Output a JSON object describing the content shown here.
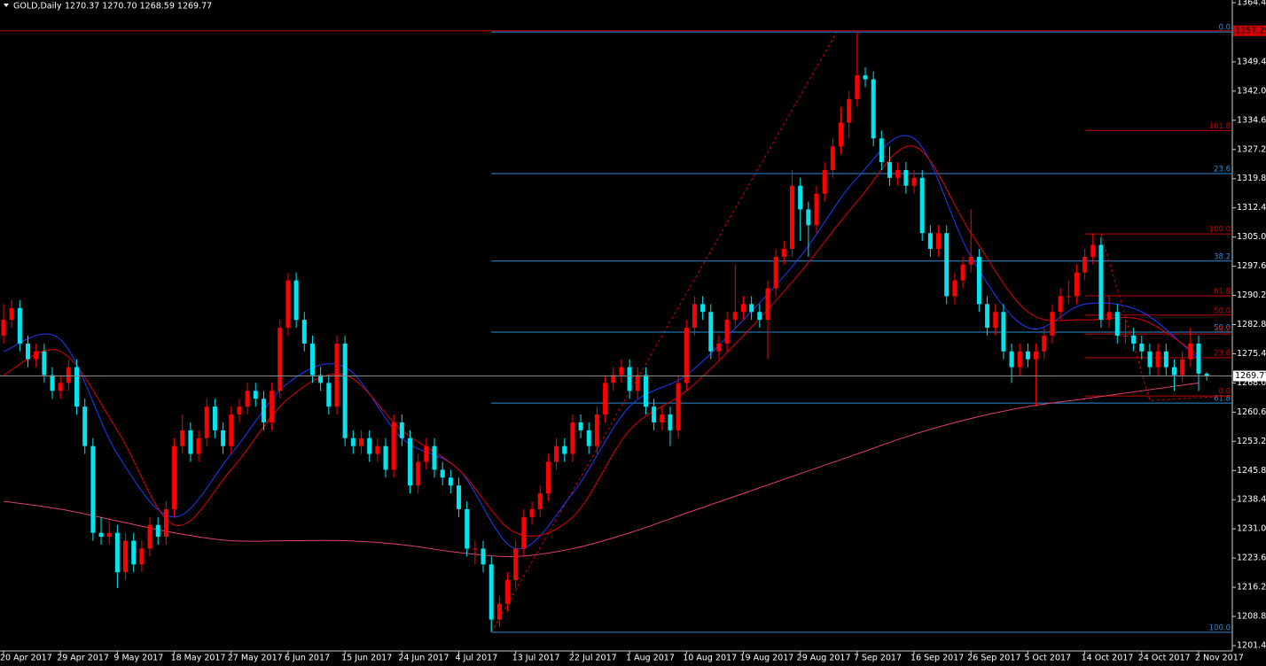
{
  "header": {
    "symbol": "GOLD,Daily",
    "quote": "1270.37 1270.70 1268.59 1269.77"
  },
  "chart_data": {
    "type": "candlestick",
    "up_color": "#ff0000",
    "down_color": "#00e5ee",
    "ylim": [
      1200.05,
      1365.1
    ],
    "yticks": [
      {
        "value": 1364.4,
        "label": "1364.40"
      },
      {
        "value": 1349.4,
        "label": "1349.40"
      },
      {
        "value": 1342,
        "label": "1342.00"
      },
      {
        "value": 1334.6,
        "label": "1334.60"
      },
      {
        "value": 1327.2,
        "label": "1327.20"
      },
      {
        "value": 1319.8,
        "label": "1319.80"
      },
      {
        "value": 1312.4,
        "label": "1312.40"
      },
      {
        "value": 1305,
        "label": "1305.00"
      },
      {
        "value": 1297.6,
        "label": "1297.60"
      },
      {
        "value": 1290.2,
        "label": "1290.20"
      },
      {
        "value": 1282.8,
        "label": "1282.80"
      },
      {
        "value": 1275.4,
        "label": "1275.40"
      },
      {
        "value": 1268,
        "label": "1268.00"
      },
      {
        "value": 1260.6,
        "label": "1260.60"
      },
      {
        "value": 1253.2,
        "label": "1253.20"
      },
      {
        "value": 1245.8,
        "label": "1245.80"
      },
      {
        "value": 1238.4,
        "label": "1238.40"
      },
      {
        "value": 1231,
        "label": "1231.00"
      },
      {
        "value": 1223.6,
        "label": "1223.60"
      },
      {
        "value": 1216.2,
        "label": "1216.20"
      },
      {
        "value": 1208.8,
        "label": "1208.80"
      },
      {
        "value": 1201.4,
        "label": "1201.40"
      }
    ],
    "x_labels": [
      "20 Apr 2017",
      "29 Apr 2017",
      "9 May 2017",
      "18 May 2017",
      "27 May 2017",
      "6 Jun 2017",
      "15 Jun 2017",
      "24 Jun 2017",
      "4 Jul 2017",
      "13 Jul 2017",
      "22 Jul 2017",
      "1 Aug 2017",
      "10 Aug 2017",
      "19 Aug 2017",
      "29 Aug 2017",
      "7 Sep 2017",
      "16 Sep 2017",
      "26 Sep 2017",
      "5 Oct 2017",
      "14 Oct 2017",
      "24 Oct 2017",
      "2 Nov 2017"
    ],
    "candles": [
      [
        1280,
        1288,
        1278,
        1284
      ],
      [
        1284,
        1289,
        1282,
        1287
      ],
      [
        1287,
        1289,
        1276,
        1278
      ],
      [
        1278,
        1280,
        1272,
        1274
      ],
      [
        1274,
        1278,
        1272,
        1276
      ],
      [
        1276,
        1278,
        1268,
        1270
      ],
      [
        1270,
        1272,
        1264,
        1266
      ],
      [
        1266,
        1270,
        1264,
        1268
      ],
      [
        1268,
        1274,
        1266,
        1272
      ],
      [
        1272,
        1274,
        1260,
        1262
      ],
      [
        1262,
        1264,
        1250,
        1252
      ],
      [
        1252,
        1254,
        1228,
        1230
      ],
      [
        1230,
        1234,
        1227,
        1229
      ],
      [
        1229,
        1233,
        1227,
        1230
      ],
      [
        1230,
        1232,
        1216,
        1220
      ],
      [
        1220,
        1230,
        1218,
        1228
      ],
      [
        1228,
        1230,
        1220,
        1222
      ],
      [
        1222,
        1228,
        1220,
        1226
      ],
      [
        1226,
        1234,
        1224,
        1232
      ],
      [
        1232,
        1234,
        1227,
        1229
      ],
      [
        1229,
        1238,
        1227,
        1236
      ],
      [
        1236,
        1254,
        1234,
        1252
      ],
      [
        1252,
        1260,
        1250,
        1256
      ],
      [
        1256,
        1258,
        1248,
        1250
      ],
      [
        1250,
        1256,
        1248,
        1254
      ],
      [
        1254,
        1264,
        1252,
        1262
      ],
      [
        1262,
        1264,
        1254,
        1256
      ],
      [
        1256,
        1258,
        1250,
        1252
      ],
      [
        1252,
        1262,
        1250,
        1260
      ],
      [
        1260,
        1264,
        1258,
        1262
      ],
      [
        1262,
        1268,
        1260,
        1266
      ],
      [
        1266,
        1268,
        1262,
        1264
      ],
      [
        1264,
        1266,
        1256,
        1258
      ],
      [
        1258,
        1268,
        1256,
        1266
      ],
      [
        1266,
        1284,
        1264,
        1282
      ],
      [
        1282,
        1296,
        1280,
        1294
      ],
      [
        1294,
        1296,
        1282,
        1284
      ],
      [
        1284,
        1286,
        1276,
        1278
      ],
      [
        1278,
        1280,
        1268,
        1270
      ],
      [
        1270,
        1272,
        1266,
        1268
      ],
      [
        1268,
        1270,
        1260,
        1262
      ],
      [
        1262,
        1280,
        1260,
        1278
      ],
      [
        1278,
        1280,
        1252,
        1254
      ],
      [
        1254,
        1256,
        1250,
        1252
      ],
      [
        1252,
        1256,
        1250,
        1254
      ],
      [
        1254,
        1256,
        1248,
        1250
      ],
      [
        1250,
        1254,
        1248,
        1252
      ],
      [
        1252,
        1254,
        1244,
        1246
      ],
      [
        1246,
        1260,
        1244,
        1258
      ],
      [
        1258,
        1260,
        1252,
        1254
      ],
      [
        1254,
        1256,
        1240,
        1242
      ],
      [
        1242,
        1250,
        1240,
        1248
      ],
      [
        1248,
        1254,
        1246,
        1252
      ],
      [
        1252,
        1254,
        1244,
        1246
      ],
      [
        1246,
        1248,
        1242,
        1244
      ],
      [
        1244,
        1246,
        1240,
        1242
      ],
      [
        1242,
        1244,
        1234,
        1236
      ],
      [
        1236,
        1238,
        1224,
        1226
      ],
      [
        1226,
        1228,
        1222,
        1226
      ],
      [
        1226,
        1228,
        1220,
        1222
      ],
      [
        1222,
        1224,
        1205,
        1208
      ],
      [
        1208,
        1214,
        1206,
        1212
      ],
      [
        1212,
        1220,
        1210,
        1218
      ],
      [
        1218,
        1228,
        1216,
        1226
      ],
      [
        1226,
        1236,
        1224,
        1234
      ],
      [
        1234,
        1238,
        1232,
        1236
      ],
      [
        1236,
        1242,
        1234,
        1240
      ],
      [
        1240,
        1250,
        1238,
        1248
      ],
      [
        1248,
        1254,
        1246,
        1252
      ],
      [
        1252,
        1254,
        1248,
        1250
      ],
      [
        1250,
        1260,
        1248,
        1258
      ],
      [
        1258,
        1260,
        1254,
        1256
      ],
      [
        1256,
        1258,
        1250,
        1252
      ],
      [
        1252,
        1262,
        1250,
        1260
      ],
      [
        1260,
        1270,
        1258,
        1268
      ],
      [
        1268,
        1272,
        1266,
        1270
      ],
      [
        1270,
        1274,
        1268,
        1272
      ],
      [
        1272,
        1274,
        1264,
        1266
      ],
      [
        1266,
        1272,
        1264,
        1270
      ],
      [
        1270,
        1272,
        1260,
        1262
      ],
      [
        1262,
        1264,
        1256,
        1258
      ],
      [
        1258,
        1262,
        1256,
        1260
      ],
      [
        1260,
        1262,
        1252,
        1256
      ],
      [
        1256,
        1270,
        1254,
        1268
      ],
      [
        1268,
        1284,
        1266,
        1282
      ],
      [
        1282,
        1290,
        1280,
        1288
      ],
      [
        1288,
        1290,
        1284,
        1286
      ],
      [
        1286,
        1288,
        1274,
        1276
      ],
      [
        1276,
        1280,
        1274,
        1278
      ],
      [
        1278,
        1286,
        1276,
        1284
      ],
      [
        1284,
        1298,
        1282,
        1286
      ],
      [
        1286,
        1290,
        1284,
        1288
      ],
      [
        1288,
        1290,
        1284,
        1286
      ],
      [
        1286,
        1288,
        1282,
        1284
      ],
      [
        1284,
        1294,
        1274,
        1292
      ],
      [
        1292,
        1302,
        1290,
        1300
      ],
      [
        1300,
        1304,
        1298,
        1302
      ],
      [
        1302,
        1322,
        1300,
        1318
      ],
      [
        1318,
        1320,
        1304,
        1312
      ],
      [
        1312,
        1314,
        1300,
        1308
      ],
      [
        1308,
        1318,
        1306,
        1316
      ],
      [
        1316,
        1324,
        1314,
        1322
      ],
      [
        1322,
        1330,
        1320,
        1328
      ],
      [
        1328,
        1338,
        1326,
        1334
      ],
      [
        1334,
        1342,
        1330,
        1340
      ],
      [
        1340,
        1357,
        1338,
        1346
      ],
      [
        1346,
        1348,
        1343,
        1345
      ],
      [
        1345,
        1347,
        1328,
        1330
      ],
      [
        1330,
        1332,
        1322,
        1324
      ],
      [
        1324,
        1328,
        1318,
        1320
      ],
      [
        1320,
        1324,
        1318,
        1322
      ],
      [
        1322,
        1324,
        1316,
        1318
      ],
      [
        1318,
        1322,
        1316,
        1320
      ],
      [
        1320,
        1322,
        1304,
        1306
      ],
      [
        1306,
        1308,
        1300,
        1302
      ],
      [
        1302,
        1308,
        1300,
        1306
      ],
      [
        1306,
        1308,
        1288,
        1290
      ],
      [
        1290,
        1296,
        1288,
        1294
      ],
      [
        1294,
        1300,
        1292,
        1298
      ],
      [
        1298,
        1312,
        1296,
        1300
      ],
      [
        1300,
        1302,
        1286,
        1288
      ],
      [
        1288,
        1290,
        1280,
        1282
      ],
      [
        1282,
        1288,
        1280,
        1286
      ],
      [
        1286,
        1288,
        1274,
        1276
      ],
      [
        1276,
        1278,
        1268,
        1272
      ],
      [
        1272,
        1278,
        1270,
        1276
      ],
      [
        1276,
        1278,
        1272,
        1274
      ],
      [
        1274,
        1278,
        1262,
        1276
      ],
      [
        1276,
        1282,
        1274,
        1280
      ],
      [
        1280,
        1288,
        1278,
        1286
      ],
      [
        1286,
        1292,
        1284,
        1290
      ],
      [
        1290,
        1294,
        1288,
        1290
      ],
      [
        1290,
        1298,
        1288,
        1296
      ],
      [
        1296,
        1302,
        1294,
        1300
      ],
      [
        1300,
        1306,
        1298,
        1303
      ],
      [
        1303,
        1305,
        1282,
        1284
      ],
      [
        1284,
        1290,
        1282,
        1286
      ],
      [
        1286,
        1288,
        1278,
        1280
      ],
      [
        1280,
        1284,
        1278,
        1280
      ],
      [
        1280,
        1282,
        1276,
        1278
      ],
      [
        1278,
        1280,
        1274,
        1276
      ],
      [
        1276,
        1278,
        1270,
        1272
      ],
      [
        1272,
        1278,
        1270,
        1276
      ],
      [
        1276,
        1278,
        1270,
        1272
      ],
      [
        1272,
        1274,
        1266,
        1270
      ],
      [
        1270,
        1276,
        1268,
        1274
      ],
      [
        1274,
        1282,
        1272,
        1278
      ],
      [
        1278,
        1280,
        1266,
        1270.37
      ],
      [
        1270.37,
        1270.7,
        1268.59,
        1269.77
      ]
    ],
    "moving_averages": [
      {
        "color": "#1a3cff",
        "values": [
          1276,
          1279,
          1250,
          1234,
          1250,
          1268,
          1272,
          1254,
          1246,
          1226,
          1240,
          1262,
          1270,
          1284,
          1300,
          1320,
          1330,
          1300,
          1282,
          1288,
          1286,
          1274
        ]
      },
      {
        "color": "#e00000",
        "values": [
          1270,
          1276,
          1256,
          1232,
          1246,
          1264,
          1270,
          1256,
          1246,
          1230,
          1234,
          1256,
          1266,
          1280,
          1296,
          1314,
          1328,
          1306,
          1286,
          1284,
          1284,
          1275
        ]
      },
      {
        "color": "#e0406a",
        "values": [
          1238,
          1236,
          1233,
          1230,
          1228,
          1228,
          1228,
          1227,
          1225,
          1224,
          1226,
          1230,
          1235,
          1240,
          1245,
          1250,
          1255,
          1259,
          1262,
          1264,
          1266,
          1268
        ]
      }
    ],
    "level_line": {
      "price": 1357.29,
      "color": "#d00000"
    },
    "fib_retracement": {
      "color": "#2b8cd8",
      "levels": [
        {
          "label": "0.0",
          "price": 1357.0
        },
        {
          "label": "23.6",
          "price": 1321.1
        },
        {
          "label": "38.2",
          "price": 1298.9
        },
        {
          "label": "50.0",
          "price": 1280.9
        },
        {
          "label": "61.8",
          "price": 1262.9
        },
        {
          "label": "100.0",
          "price": 1204.8
        }
      ]
    },
    "fib_expansion": {
      "color": "#c00000",
      "levels": [
        {
          "label": "161.8",
          "price": 1332.0
        },
        {
          "label": "100.0",
          "price": 1305.8
        },
        {
          "label": "61.8",
          "price": 1290.1
        },
        {
          "label": "50.0",
          "price": 1285.2
        },
        {
          "label": "38.2",
          "price": 1280.4
        },
        {
          "label": "23.6",
          "price": 1274.4
        },
        {
          "label": "0.0",
          "price": 1264.7
        }
      ]
    }
  }
}
